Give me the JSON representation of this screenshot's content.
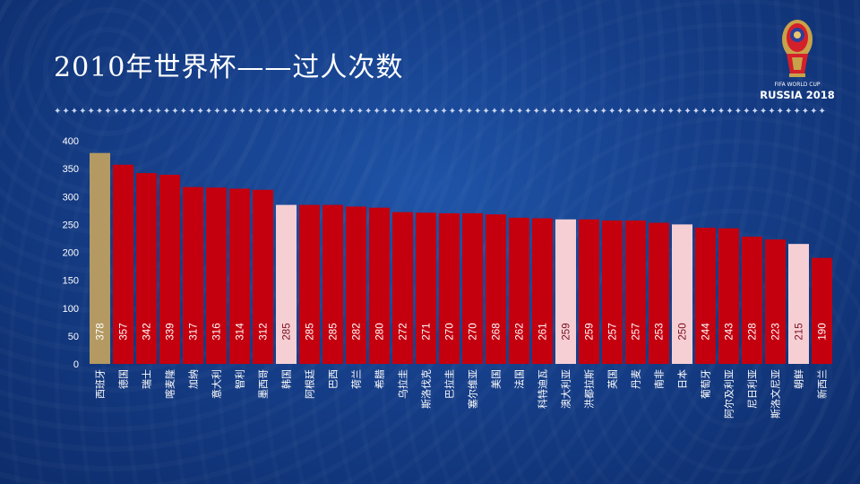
{
  "header": {
    "title": "2010年世界杯——过人次数",
    "divider": "✦✦✦✦✦✦✦✦✦✦✦✦✦✦✦✦✦✦✦✦✦✦✦✦✦✦✦✦✦✦✦✦✦✦✦✦✦✦✦✦✦✦✦✦✦✦✦✦✦✦✦✦✦✦✦✦✦✦✦✦✦✦✦✦✦✦✦✦✦✦✦✦✦✦✦✦✦✦✦✦✦✦✦✦✦✦✦✦✦✦✦✦"
  },
  "logo": {
    "line1": "FIFA WORLD CUP",
    "line2": "RUSSIA 2018"
  },
  "colors": {
    "bar_default": "#c4000f",
    "bar_highlight_gold": "#b49a62",
    "bar_highlight_pink": "#f6cfd4",
    "label_light": "#ffffff",
    "label_dark": "#7a1020"
  },
  "chart_data": {
    "type": "bar",
    "title": "2010年世界杯——过人次数",
    "xlabel": "",
    "ylabel": "",
    "ylim": [
      0,
      400
    ],
    "yticks": [
      0,
      50,
      100,
      150,
      200,
      250,
      300,
      350,
      400
    ],
    "grid": false,
    "legend": "none",
    "categories": [
      "西班牙",
      "德国",
      "瑞士",
      "喀麦隆",
      "加纳",
      "意大利",
      "智利",
      "墨西哥",
      "韩国",
      "阿根廷",
      "巴西",
      "荷兰",
      "希腊",
      "乌拉圭",
      "斯洛伐克",
      "巴拉圭",
      "塞尔维亚",
      "美国",
      "法国",
      "科特迪瓦",
      "澳大利亚",
      "洪都拉斯",
      "英国",
      "丹麦",
      "南非",
      "日本",
      "葡萄牙",
      "阿尔及利亚",
      "尼日利亚",
      "斯洛文尼亚",
      "朝鲜",
      "新西兰"
    ],
    "values": [
      378,
      357,
      342,
      339,
      317,
      316,
      314,
      312,
      285,
      285,
      285,
      282,
      280,
      272,
      271,
      270,
      270,
      268,
      262,
      261,
      259,
      259,
      257,
      257,
      253,
      250,
      244,
      243,
      228,
      223,
      215,
      190
    ],
    "highlight": [
      "gold",
      "",
      "",
      "",
      "",
      "",
      "",
      "",
      "pink",
      "",
      "",
      "",
      "",
      "",
      "",
      "",
      "",
      "",
      "",
      "",
      "pink",
      "",
      "",
      "",
      "",
      "pink",
      "",
      "",
      "",
      "",
      "pink",
      ""
    ]
  }
}
